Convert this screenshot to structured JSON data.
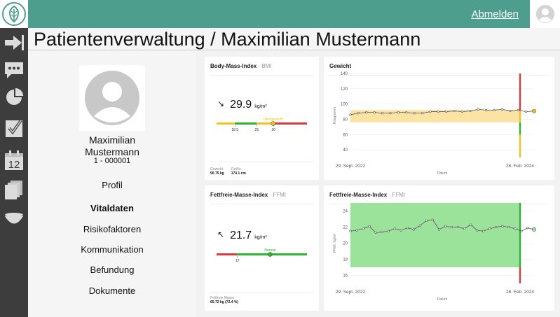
{
  "header": {
    "logout_label": "Abmelden"
  },
  "page": {
    "title": "Patientenverwaltung / Maximilian Mustermann"
  },
  "patient": {
    "first_name": "Maximilian",
    "last_name": "Mustermann",
    "id": "1 - 000001"
  },
  "nav": {
    "items": [
      {
        "label": "Profil",
        "active": false
      },
      {
        "label": "Vitaldaten",
        "active": true
      },
      {
        "label": "Risikofaktoren",
        "active": false
      },
      {
        "label": "Kommunikation",
        "active": false
      },
      {
        "label": "Befundung",
        "active": false
      },
      {
        "label": "Dokumente",
        "active": false
      }
    ]
  },
  "rail_icons": [
    "logout-arrow-icon",
    "chat-icon",
    "pie-chart-icon",
    "checklist-icon",
    "calendar-icon",
    "documents-icon",
    "bowl-icon"
  ],
  "colors": {
    "brand": "#4e9e8e",
    "rail": "#3d3d3d",
    "yellow": "#f3c21d",
    "green": "#2db52d",
    "red": "#d93b3b",
    "band_yellow": "#fbe3a3",
    "band_green": "#9be39b"
  },
  "bmi_card": {
    "title": "Body-Mass-Index",
    "subtitle": " · BMI",
    "value": "29.9",
    "unit": "kg/m²",
    "trend_icon": "arrow-down-right-icon",
    "trend_glyph": "↘",
    "category_label": "Übergewicht",
    "scale_ticks": [
      "18.5",
      "25",
      "30"
    ],
    "scale": {
      "min": 13,
      "max": 40,
      "value": 29.9,
      "segments": [
        {
          "from": 13,
          "to": 18.5,
          "color": "#f3c21d"
        },
        {
          "from": 18.5,
          "to": 25,
          "color": "#2db52d"
        },
        {
          "from": 25,
          "to": 30,
          "color": "#f3c21d"
        },
        {
          "from": 30,
          "to": 40,
          "color": "#d93b3b"
        }
      ]
    },
    "footer": [
      {
        "label": "Gewicht",
        "value": "90.75 kg"
      },
      {
        "label": "Größe",
        "value": "174.1 cm"
      }
    ]
  },
  "ffmi_card": {
    "title": "Fettfreie-Masse-Index",
    "subtitle": " · FFMI",
    "value": "21.7",
    "unit": "kg/m²",
    "trend_icon": "arrow-up-left-icon",
    "trend_glyph": "↖",
    "category_label": "Normal",
    "scale_ticks": [
      "17"
    ],
    "scale": {
      "min": 14,
      "max": 27,
      "value": 21.7,
      "segments": [
        {
          "from": 14,
          "to": 17,
          "color": "#d93b3b"
        },
        {
          "from": 17,
          "to": 27,
          "color": "#2db52d"
        }
      ]
    },
    "footer": [
      {
        "label": "Fettfreie Masse",
        "value": "65.72 kg (72.4 %)"
      }
    ]
  },
  "weight_chart": {
    "title": "Gewicht",
    "subtitle": "",
    "chart_data": {
      "type": "line",
      "title": "Gewicht",
      "xlabel": "Datum",
      "ylabel": "Kilogramm",
      "ylim": [
        30,
        140
      ],
      "yticks": [
        40,
        60,
        80,
        100,
        120,
        140
      ],
      "xtick_labels": [
        "29. Sept. 2022",
        "28. Feb. 2024"
      ],
      "x_index_max": 23,
      "reference_band": {
        "from": 76,
        "to": 92,
        "color": "#fbe3a3"
      },
      "series": [
        {
          "values": [
            86,
            88,
            89,
            89,
            88,
            88,
            89,
            89,
            88,
            88,
            90,
            90,
            90,
            91,
            90,
            91,
            93,
            92,
            92,
            93,
            91,
            92,
            90,
            90.75
          ]
        }
      ],
      "current_value": 90.75,
      "vertical_marker": [
        {
          "from": 30,
          "to": 60,
          "color": "#f3c21d"
        },
        {
          "from": 60,
          "to": 76,
          "color": "#2db52d"
        },
        {
          "from": 76,
          "to": 92,
          "color": "#f3c21d"
        },
        {
          "from": 92,
          "to": 140,
          "color": "#d93b3b"
        }
      ]
    }
  },
  "ffmi_chart": {
    "title": "Fettfreie-Masse-Index",
    "subtitle": " · FFMI",
    "chart_data": {
      "type": "line",
      "title": "Fettfreie-Masse-Index",
      "xlabel": "Datum",
      "ylabel": "FFMI, kg/m²",
      "ylim": [
        15,
        25
      ],
      "yticks": [
        16,
        18,
        20,
        22,
        24
      ],
      "xtick_labels": [
        "29. Sept. 2022",
        "28. Feb. 2024"
      ],
      "x_index_max": 29,
      "reference_band": {
        "from": 17,
        "to": 25,
        "color": "#9be39b"
      },
      "series": [
        {
          "values": [
            21.5,
            21.6,
            21.8,
            22.1,
            21.3,
            21.4,
            21.5,
            21.8,
            21.6,
            21.9,
            21.7,
            22.2,
            22.8,
            22.9,
            21.7,
            22.1,
            22.0,
            22.0,
            21.8,
            22.3,
            21.6,
            21.5,
            21.8,
            22.0,
            22.1,
            22.0,
            21.8,
            21.5,
            21.9,
            21.7
          ]
        }
      ],
      "current_value": 21.7,
      "vertical_marker": [
        {
          "from": 15,
          "to": 17,
          "color": "#d93b3b"
        },
        {
          "from": 17,
          "to": 25,
          "color": "#2db52d"
        }
      ]
    }
  }
}
